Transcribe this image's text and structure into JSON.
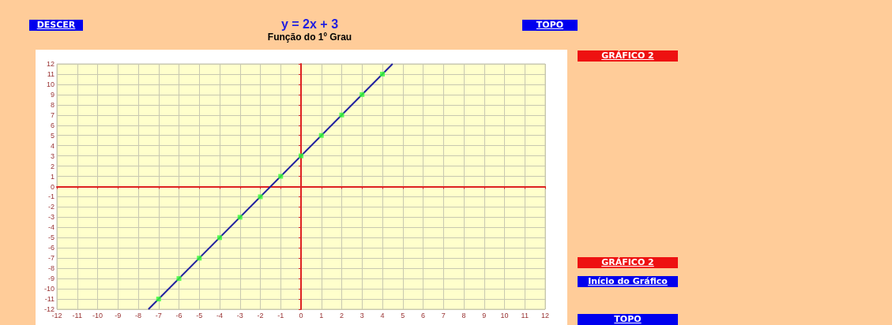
{
  "chart_data": {
    "type": "line",
    "title": "y = 2x + 3",
    "subtitle": "Função do 1º Grau",
    "series": [
      {
        "color": "#1f1fa0",
        "x": [
          -7.5,
          4.5
        ],
        "values": [
          -12,
          12
        ],
        "marker": "none"
      },
      {
        "type": "scatter",
        "color": "#33ff33",
        "x": [
          -7,
          -6,
          -5,
          -4,
          -3,
          -2,
          -1,
          0,
          1,
          2,
          3,
          4
        ],
        "values": [
          -11,
          -9,
          -7,
          -5,
          -3,
          -1,
          1,
          3,
          5,
          7,
          9,
          11
        ],
        "marker": "square"
      }
    ],
    "xlim": [
      -12,
      12
    ],
    "ylim": [
      -12,
      12
    ],
    "xticks": [
      -12,
      -11,
      -10,
      -9,
      -8,
      -7,
      -6,
      -5,
      -4,
      -3,
      -2,
      -1,
      0,
      1,
      2,
      3,
      4,
      5,
      6,
      7,
      8,
      9,
      10,
      11,
      12
    ],
    "yticks": [
      -12,
      -11,
      -10,
      -9,
      -8,
      -7,
      -6,
      -5,
      -4,
      -3,
      -2,
      -1,
      0,
      1,
      2,
      3,
      4,
      5,
      6,
      7,
      8,
      9,
      10,
      11,
      12
    ],
    "grid": true,
    "annotations": [
      "DESCER",
      "TOPO",
      "GRÁFICO 2",
      "GRÁFICO 2",
      "Início do Gráfico",
      "TOPO"
    ]
  }
}
